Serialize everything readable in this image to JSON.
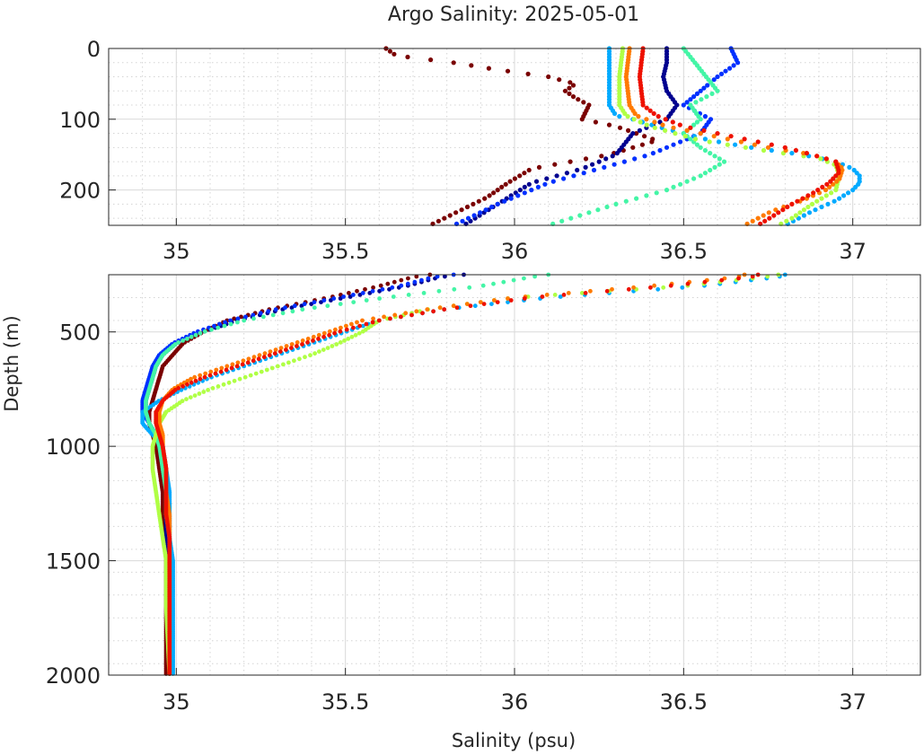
{
  "chart_data": {
    "type": "scatter",
    "title": "Argo Salinity: 2025-05-01",
    "xlabel": "Salinity (psu)",
    "ylabel": "Depth (m)",
    "xlim": [
      34.8,
      37.2
    ],
    "x_ticks": [
      "35",
      "35.5",
      "36",
      "36.5",
      "37"
    ],
    "x_tick_values": [
      35,
      35.5,
      36,
      36.5,
      37
    ],
    "y_reversed": true,
    "grid": "on",
    "minor_grid": "on",
    "panels": [
      {
        "name": "upper",
        "ylim": [
          0,
          250
        ],
        "y_ticks": [
          "0",
          "100",
          "200"
        ],
        "y_tick_values": [
          0,
          100,
          200
        ]
      },
      {
        "name": "lower",
        "ylim": [
          250,
          2000
        ],
        "y_ticks": [
          "500",
          "1000",
          "1500",
          "2000"
        ],
        "y_tick_values": [
          500,
          1000,
          1500,
          2000
        ]
      }
    ],
    "series": [
      {
        "color": "#7a0000",
        "profile": [
          [
            0,
            35.62
          ],
          [
            10,
            35.65
          ],
          [
            20,
            35.82
          ],
          [
            30,
            35.95
          ],
          [
            40,
            36.1
          ],
          [
            50,
            36.18
          ],
          [
            60,
            36.15
          ],
          [
            70,
            36.18
          ],
          [
            80,
            36.22
          ],
          [
            100,
            36.2
          ],
          [
            110,
            36.3
          ],
          [
            130,
            36.42
          ],
          [
            150,
            36.28
          ],
          [
            170,
            36.05
          ],
          [
            190,
            35.98
          ],
          [
            210,
            35.92
          ],
          [
            250,
            35.75
          ],
          [
            260,
            35.7
          ],
          [
            300,
            35.6
          ],
          [
            350,
            35.45
          ],
          [
            400,
            35.28
          ],
          [
            450,
            35.15
          ],
          [
            500,
            35.08
          ],
          [
            550,
            35.02
          ],
          [
            600,
            34.99
          ],
          [
            650,
            34.96
          ],
          [
            700,
            34.95
          ],
          [
            750,
            34.94
          ],
          [
            800,
            34.93
          ],
          [
            850,
            34.92
          ],
          [
            900,
            34.92
          ],
          [
            950,
            34.93
          ],
          [
            1000,
            34.94
          ],
          [
            1100,
            34.95
          ],
          [
            1200,
            34.96
          ],
          [
            1300,
            34.96
          ],
          [
            1400,
            34.97
          ],
          [
            1500,
            34.97
          ],
          [
            1700,
            34.97
          ],
          [
            2000,
            34.97
          ]
        ]
      },
      {
        "color": "#00008f",
        "profile": [
          [
            0,
            36.45
          ],
          [
            20,
            36.45
          ],
          [
            40,
            36.44
          ],
          [
            60,
            36.45
          ],
          [
            80,
            36.48
          ],
          [
            100,
            36.45
          ],
          [
            120,
            36.35
          ],
          [
            150,
            36.3
          ],
          [
            170,
            36.2
          ],
          [
            190,
            36.05
          ],
          [
            220,
            35.95
          ],
          [
            250,
            35.85
          ],
          [
            260,
            35.78
          ],
          [
            300,
            35.68
          ],
          [
            350,
            35.5
          ],
          [
            400,
            35.32
          ],
          [
            450,
            35.18
          ],
          [
            500,
            35.08
          ],
          [
            550,
            35.0
          ],
          [
            600,
            34.96
          ],
          [
            650,
            34.94
          ],
          [
            700,
            34.93
          ],
          [
            750,
            34.92
          ],
          [
            800,
            34.91
          ],
          [
            850,
            34.91
          ],
          [
            900,
            34.92
          ],
          [
            950,
            34.94
          ],
          [
            1000,
            34.95
          ],
          [
            1100,
            34.96
          ],
          [
            1200,
            34.97
          ],
          [
            1300,
            34.97
          ],
          [
            1400,
            34.97
          ],
          [
            1500,
            34.98
          ],
          [
            1700,
            34.98
          ],
          [
            2000,
            34.98
          ]
        ]
      },
      {
        "color": "#0030ff",
        "profile": [
          [
            0,
            36.64
          ],
          [
            20,
            36.66
          ],
          [
            40,
            36.6
          ],
          [
            60,
            36.55
          ],
          [
            80,
            36.5
          ],
          [
            100,
            36.58
          ],
          [
            120,
            36.55
          ],
          [
            150,
            36.4
          ],
          [
            170,
            36.25
          ],
          [
            190,
            36.1
          ],
          [
            220,
            35.95
          ],
          [
            250,
            35.82
          ],
          [
            260,
            35.76
          ],
          [
            300,
            35.66
          ],
          [
            350,
            35.48
          ],
          [
            400,
            35.3
          ],
          [
            450,
            35.16
          ],
          [
            500,
            35.06
          ],
          [
            550,
            34.99
          ],
          [
            600,
            34.95
          ],
          [
            650,
            34.93
          ],
          [
            700,
            34.92
          ],
          [
            750,
            34.91
          ],
          [
            800,
            34.9
          ],
          [
            850,
            34.9
          ],
          [
            900,
            34.92
          ],
          [
            950,
            34.94
          ],
          [
            1000,
            34.96
          ],
          [
            1100,
            34.97
          ],
          [
            1200,
            34.97
          ],
          [
            1300,
            34.98
          ],
          [
            1400,
            34.98
          ],
          [
            1500,
            34.98
          ],
          [
            1700,
            34.98
          ],
          [
            2000,
            34.98
          ]
        ]
      },
      {
        "color": "#00aaff",
        "profile": [
          [
            0,
            36.28
          ],
          [
            40,
            36.28
          ],
          [
            80,
            36.28
          ],
          [
            95,
            36.3
          ],
          [
            100,
            36.35
          ],
          [
            110,
            36.42
          ],
          [
            120,
            36.5
          ],
          [
            130,
            36.58
          ],
          [
            140,
            36.7
          ],
          [
            150,
            36.85
          ],
          [
            160,
            36.95
          ],
          [
            170,
            37.0
          ],
          [
            180,
            37.02
          ],
          [
            190,
            37.02
          ],
          [
            200,
            37.0
          ],
          [
            215,
            36.95
          ],
          [
            230,
            36.88
          ],
          [
            250,
            36.8
          ],
          [
            260,
            36.78
          ],
          [
            300,
            36.55
          ],
          [
            350,
            36.1
          ],
          [
            400,
            35.8
          ],
          [
            450,
            35.6
          ],
          [
            500,
            35.5
          ],
          [
            550,
            35.4
          ],
          [
            600,
            35.3
          ],
          [
            650,
            35.2
          ],
          [
            700,
            35.1
          ],
          [
            750,
            35.02
          ],
          [
            800,
            34.95
          ],
          [
            850,
            34.9
          ],
          [
            900,
            34.9
          ],
          [
            950,
            34.93
          ],
          [
            1000,
            34.96
          ],
          [
            1100,
            34.97
          ],
          [
            1200,
            34.98
          ],
          [
            1300,
            34.98
          ],
          [
            1400,
            34.98
          ],
          [
            1500,
            34.99
          ],
          [
            1700,
            34.99
          ],
          [
            2000,
            34.99
          ]
        ]
      },
      {
        "color": "#44f5a6",
        "profile": [
          [
            0,
            36.5
          ],
          [
            30,
            36.55
          ],
          [
            60,
            36.6
          ],
          [
            80,
            36.52
          ],
          [
            100,
            36.55
          ],
          [
            120,
            36.5
          ],
          [
            140,
            36.55
          ],
          [
            160,
            36.62
          ],
          [
            180,
            36.55
          ],
          [
            200,
            36.45
          ],
          [
            220,
            36.3
          ],
          [
            250,
            36.1
          ],
          [
            260,
            36.05
          ],
          [
            300,
            35.9
          ],
          [
            350,
            35.62
          ],
          [
            400,
            35.38
          ],
          [
            450,
            35.2
          ],
          [
            500,
            35.08
          ],
          [
            550,
            35.0
          ],
          [
            600,
            34.96
          ],
          [
            650,
            34.94
          ],
          [
            700,
            34.93
          ],
          [
            750,
            34.92
          ],
          [
            800,
            34.91
          ],
          [
            850,
            34.91
          ],
          [
            900,
            34.92
          ],
          [
            950,
            34.94
          ],
          [
            1000,
            34.95
          ],
          [
            1100,
            34.96
          ],
          [
            1200,
            34.97
          ],
          [
            1300,
            34.97
          ],
          [
            1400,
            34.98
          ],
          [
            1500,
            34.98
          ],
          [
            1700,
            34.98
          ],
          [
            2000,
            34.98
          ]
        ]
      },
      {
        "color": "#b0ff45",
        "profile": [
          [
            0,
            36.32
          ],
          [
            40,
            36.31
          ],
          [
            80,
            36.31
          ],
          [
            95,
            36.33
          ],
          [
            110,
            36.4
          ],
          [
            130,
            36.55
          ],
          [
            145,
            36.75
          ],
          [
            155,
            36.9
          ],
          [
            165,
            36.95
          ],
          [
            180,
            36.96
          ],
          [
            200,
            36.95
          ],
          [
            220,
            36.88
          ],
          [
            240,
            36.82
          ],
          [
            250,
            36.78
          ],
          [
            260,
            36.74
          ],
          [
            300,
            36.5
          ],
          [
            350,
            36.0
          ],
          [
            400,
            35.75
          ],
          [
            450,
            35.6
          ],
          [
            500,
            35.55
          ],
          [
            550,
            35.48
          ],
          [
            600,
            35.4
          ],
          [
            650,
            35.3
          ],
          [
            700,
            35.2
          ],
          [
            750,
            35.1
          ],
          [
            800,
            35.02
          ],
          [
            850,
            34.97
          ],
          [
            900,
            34.95
          ],
          [
            950,
            34.94
          ],
          [
            1000,
            34.93
          ],
          [
            1100,
            34.93
          ],
          [
            1200,
            34.94
          ],
          [
            1300,
            34.95
          ],
          [
            1400,
            34.96
          ],
          [
            1500,
            34.97
          ],
          [
            1700,
            34.97
          ],
          [
            2000,
            34.98
          ]
        ]
      },
      {
        "color": "#ff7a00",
        "profile": [
          [
            0,
            36.34
          ],
          [
            40,
            36.33
          ],
          [
            80,
            36.34
          ],
          [
            95,
            36.36
          ],
          [
            110,
            36.45
          ],
          [
            125,
            36.6
          ],
          [
            140,
            36.75
          ],
          [
            150,
            36.88
          ],
          [
            160,
            36.95
          ],
          [
            170,
            36.97
          ],
          [
            185,
            36.96
          ],
          [
            200,
            36.92
          ],
          [
            215,
            36.85
          ],
          [
            230,
            36.76
          ],
          [
            250,
            36.68
          ],
          [
            260,
            36.66
          ],
          [
            300,
            36.4
          ],
          [
            350,
            36.0
          ],
          [
            400,
            35.75
          ],
          [
            450,
            35.55
          ],
          [
            500,
            35.45
          ],
          [
            550,
            35.35
          ],
          [
            600,
            35.25
          ],
          [
            650,
            35.15
          ],
          [
            700,
            35.05
          ],
          [
            750,
            34.99
          ],
          [
            800,
            34.96
          ],
          [
            850,
            34.95
          ],
          [
            900,
            34.95
          ],
          [
            950,
            34.96
          ],
          [
            1000,
            34.96
          ],
          [
            1100,
            34.97
          ],
          [
            1200,
            34.97
          ],
          [
            1300,
            34.98
          ],
          [
            1400,
            34.98
          ],
          [
            1500,
            34.98
          ],
          [
            1700,
            34.98
          ],
          [
            2000,
            34.98
          ]
        ]
      },
      {
        "color": "#ee1100",
        "profile": [
          [
            0,
            36.38
          ],
          [
            40,
            36.37
          ],
          [
            80,
            36.38
          ],
          [
            95,
            36.42
          ],
          [
            110,
            36.5
          ],
          [
            125,
            36.65
          ],
          [
            140,
            36.8
          ],
          [
            150,
            36.88
          ],
          [
            160,
            36.95
          ],
          [
            175,
            36.96
          ],
          [
            190,
            36.93
          ],
          [
            205,
            36.88
          ],
          [
            220,
            36.82
          ],
          [
            235,
            36.77
          ],
          [
            250,
            36.72
          ],
          [
            260,
            36.7
          ],
          [
            300,
            36.45
          ],
          [
            350,
            36.05
          ],
          [
            400,
            35.8
          ],
          [
            450,
            35.6
          ],
          [
            500,
            35.48
          ],
          [
            550,
            35.38
          ],
          [
            600,
            35.28
          ],
          [
            650,
            35.18
          ],
          [
            700,
            35.08
          ],
          [
            750,
            35.0
          ],
          [
            800,
            34.96
          ],
          [
            850,
            34.94
          ],
          [
            900,
            34.94
          ],
          [
            950,
            34.95
          ],
          [
            1000,
            34.96
          ],
          [
            1100,
            34.97
          ],
          [
            1200,
            34.97
          ],
          [
            1300,
            34.97
          ],
          [
            1400,
            34.98
          ],
          [
            1500,
            34.98
          ],
          [
            1700,
            34.98
          ],
          [
            2000,
            34.98
          ]
        ]
      }
    ]
  }
}
